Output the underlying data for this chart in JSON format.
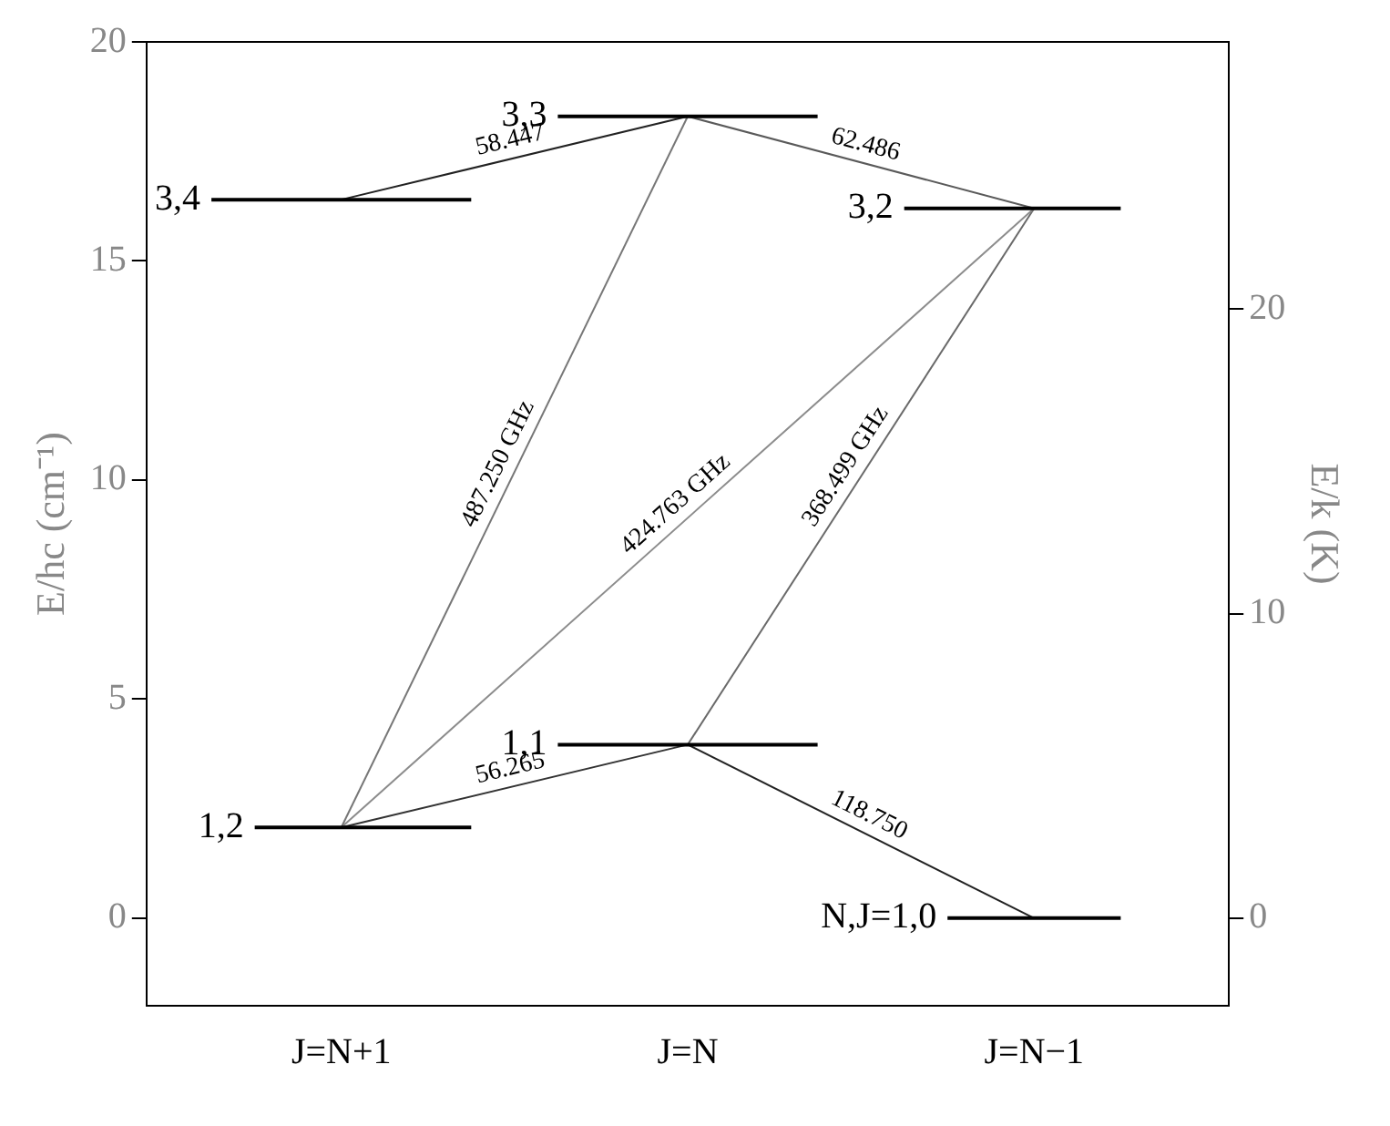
{
  "chart_data": {
    "type": "line",
    "categories": [
      null,
      null,
      null,
      null,
      "J=N+1",
      null,
      null,
      null,
      null,
      null,
      null,
      null,
      "J=N",
      null,
      null,
      null,
      null,
      null,
      null,
      null,
      "J=N−1",
      null,
      null,
      null,
      null
    ],
    "ylabel": "E/hc (cm⁻¹)",
    "y2label": "E/k (K)",
    "ylim": [
      -2,
      20
    ],
    "yticks": [
      0,
      5,
      10,
      15,
      20
    ],
    "y2lim": [
      -2.878,
      28.776
    ],
    "y2ticks": [
      0,
      10,
      20
    ],
    "grid": false,
    "legend": false,
    "series": [
      {
        "name": "3,4",
        "values": [
          null,
          16.4,
          16.4,
          16.4,
          16.4,
          16.4,
          16.4,
          16.4,
          null,
          null,
          null,
          null,
          null,
          null,
          null,
          null,
          null,
          null,
          null,
          null,
          null,
          null,
          null,
          null,
          null
        ],
        "color": "#000000"
      },
      {
        "name": "1,2",
        "values": [
          null,
          null,
          2.07,
          2.07,
          2.07,
          2.07,
          2.07,
          2.07,
          null,
          null,
          null,
          null,
          null,
          null,
          null,
          null,
          null,
          null,
          null,
          null,
          null,
          null,
          null,
          null,
          null
        ],
        "color": "#000000"
      },
      {
        "name": "3,3",
        "values": [
          null,
          null,
          null,
          null,
          null,
          null,
          null,
          null,
          null,
          18.3,
          18.3,
          18.3,
          18.3,
          18.3,
          18.3,
          18.3,
          null,
          null,
          null,
          null,
          null,
          null,
          null,
          null,
          null
        ],
        "color": "#000000"
      },
      {
        "name": "1,1",
        "values": [
          null,
          null,
          null,
          null,
          null,
          null,
          null,
          null,
          null,
          3.96,
          3.96,
          3.96,
          3.96,
          3.96,
          3.96,
          3.96,
          null,
          null,
          null,
          null,
          null,
          null,
          null,
          null,
          null
        ],
        "color": "#000000"
      },
      {
        "name": "3,2",
        "values": [
          null,
          null,
          null,
          null,
          null,
          null,
          null,
          null,
          null,
          null,
          null,
          null,
          null,
          null,
          null,
          null,
          null,
          16.2,
          16.2,
          16.2,
          16.2,
          16.2,
          16.2,
          null,
          null
        ],
        "color": "#000000"
      },
      {
        "name": "N,J=1,0",
        "values": [
          null,
          null,
          null,
          null,
          null,
          null,
          null,
          null,
          null,
          null,
          null,
          null,
          null,
          null,
          null,
          null,
          null,
          null,
          0,
          0,
          0,
          0,
          0,
          null,
          null
        ],
        "color": "#000000"
      },
      {
        "name": "58.447",
        "x": [
          "J=N+1",
          "J=N"
        ],
        "values": [
          16.4,
          18.3
        ],
        "color": "#222222"
      },
      {
        "name": "62.486",
        "x": [
          "J=N",
          "J=N−1"
        ],
        "values": [
          18.3,
          16.2
        ],
        "color": "#5a5a5a"
      },
      {
        "name": "487.250 GHz",
        "x": [
          "J=N+1",
          "J=N"
        ],
        "values": [
          2.07,
          18.3
        ],
        "color": "#777777"
      },
      {
        "name": "424.763 GHz",
        "x": [
          "J=N+1",
          "J=N−1"
        ],
        "values": [
          2.07,
          16.2
        ],
        "color": "#8c8c8c"
      },
      {
        "name": "368.499 GHz",
        "x": [
          "J=N",
          "J=N−1"
        ],
        "values": [
          3.96,
          16.2
        ],
        "color": "#6a6a6a"
      },
      {
        "name": "56.265",
        "x": [
          "J=N+1",
          "J=N"
        ],
        "values": [
          2.07,
          3.96
        ],
        "color": "#333333"
      },
      {
        "name": "118.750",
        "x": [
          "J=N",
          "J=N−1"
        ],
        "values": [
          3.96,
          0
        ],
        "color": "#222222"
      }
    ]
  }
}
